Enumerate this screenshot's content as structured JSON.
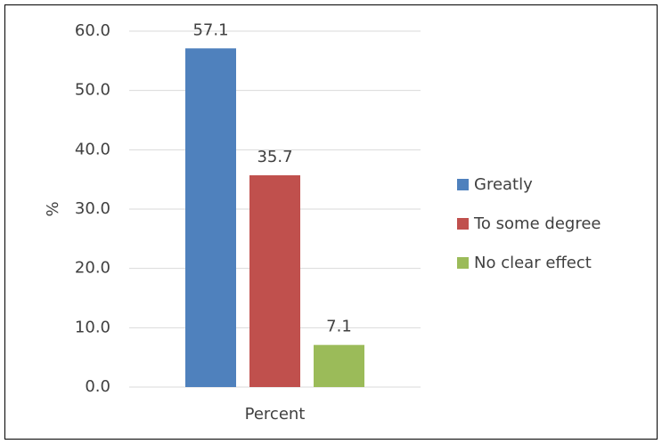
{
  "chart_data": {
    "type": "bar",
    "y_label": "%",
    "categories": [
      "Percent"
    ],
    "series": [
      {
        "name": "Greatly",
        "color": "#4f81bd",
        "values": [
          57.1
        ]
      },
      {
        "name": "To some degree",
        "color": "#c0504d",
        "values": [
          35.7
        ]
      },
      {
        "name": "No clear effect",
        "color": "#9bbb59",
        "values": [
          7.1
        ]
      }
    ],
    "ylim": [
      0,
      60
    ],
    "yticks": [
      {
        "value": 0,
        "label": "0.0"
      },
      {
        "value": 10,
        "label": "10.0"
      },
      {
        "value": 20,
        "label": "20.0"
      },
      {
        "value": 30,
        "label": "30.0"
      },
      {
        "value": 40,
        "label": "40.0"
      },
      {
        "value": 50,
        "label": "50.0"
      },
      {
        "value": 60,
        "label": "60.0"
      }
    ],
    "grid": true,
    "legend": "right"
  }
}
